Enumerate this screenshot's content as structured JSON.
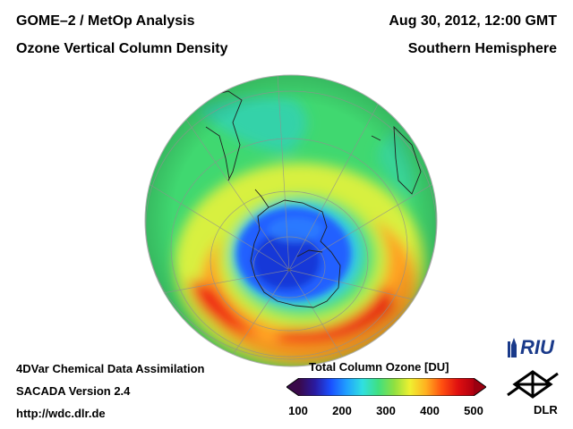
{
  "header": {
    "title_left": "GOME–2 / MetOp Analysis",
    "subtitle_left": "Ozone Vertical Column Density",
    "datetime": "Aug 30, 2012, 12:00 GMT",
    "region": "Southern Hemisphere"
  },
  "footer": {
    "line1": "4DVar Chemical Data Assimilation",
    "line2": "SACADA Version 2.4",
    "line3": "http://wdc.dlr.de"
  },
  "colorbar": {
    "title": "Total Column Ozone [DU]",
    "ticks": [
      "100",
      "200",
      "300",
      "400",
      "500"
    ],
    "min": 100,
    "max": 500,
    "stops": [
      "#3a0a4a",
      "#2a1aa0",
      "#1a50ff",
      "#20a0ff",
      "#30e0e0",
      "#40e080",
      "#90e040",
      "#f0f030",
      "#ffb020",
      "#ff5010",
      "#e01010",
      "#b00010"
    ]
  },
  "logos": {
    "riu": "RIU",
    "dlr": "DLR"
  },
  "map": {
    "projection": "orthographic",
    "hemisphere": "south",
    "ozone_hole_min_du": 150,
    "colors": {
      "background_green": "#40d870",
      "ring_yellow": "#d8f040",
      "ring_orange": "#ffa020",
      "ring_red": "#f02818",
      "hole_blue": "#2060ff",
      "hole_core": "#1838d8",
      "coast": "#202020",
      "grid": "#909090"
    }
  }
}
